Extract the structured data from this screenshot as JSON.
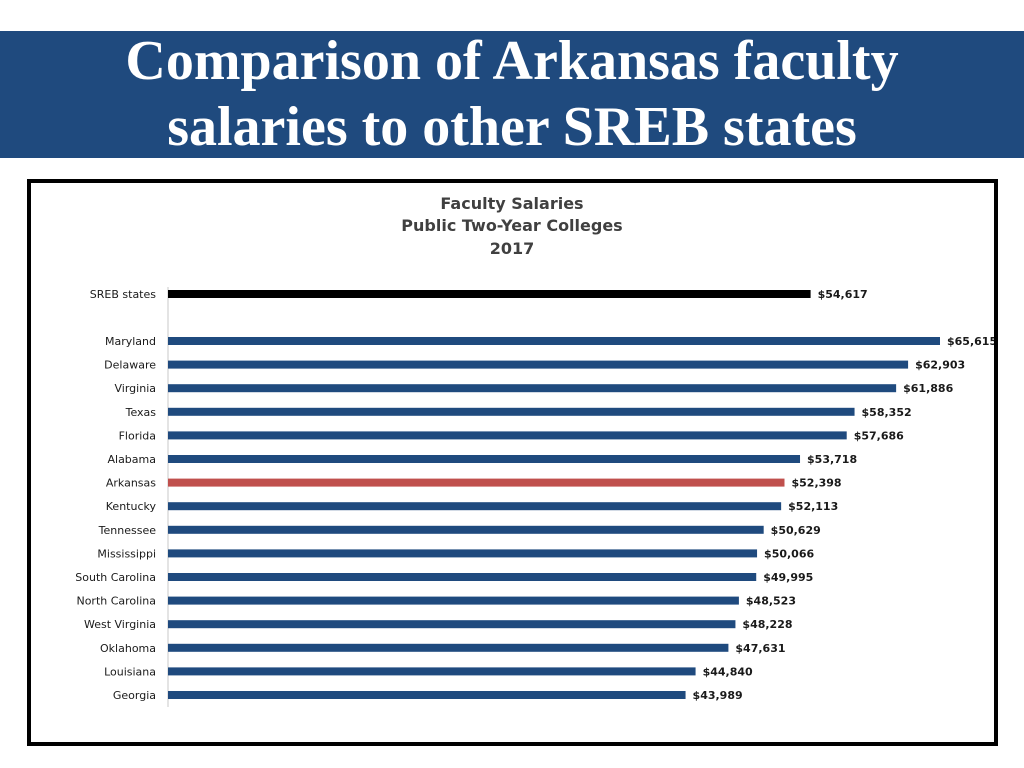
{
  "slide": {
    "title_line1": "Comparison of Arkansas faculty",
    "title_line2": "salaries to other SREB states"
  },
  "colors": {
    "banner": "#1f4a7e",
    "bar_default": "#1f4a7e",
    "bar_reference": "#000000",
    "bar_highlight": "#c0504d"
  },
  "chart_data": {
    "type": "bar",
    "orientation": "horizontal",
    "title": [
      "Faculty Salaries",
      "Public Two-Year Colleges",
      "2017"
    ],
    "xlabel": "",
    "ylabel": "",
    "grid": false,
    "legend": "none",
    "xlim": [
      0,
      65615
    ],
    "bars": [
      {
        "category": "SREB states",
        "value": 54617,
        "label": "$54,617",
        "style": "reference"
      },
      {
        "category": "Maryland",
        "value": 65615,
        "label": "$65,615",
        "style": "default"
      },
      {
        "category": "Delaware",
        "value": 62903,
        "label": "$62,903",
        "style": "default"
      },
      {
        "category": "Virginia",
        "value": 61886,
        "label": "$61,886",
        "style": "default"
      },
      {
        "category": "Texas",
        "value": 58352,
        "label": "$58,352",
        "style": "default"
      },
      {
        "category": "Florida",
        "value": 57686,
        "label": "$57,686",
        "style": "default"
      },
      {
        "category": "Alabama",
        "value": 53718,
        "label": "$53,718",
        "style": "default"
      },
      {
        "category": "Arkansas",
        "value": 52398,
        "label": "$52,398",
        "style": "highlight"
      },
      {
        "category": "Kentucky",
        "value": 52113,
        "label": "$52,113",
        "style": "default"
      },
      {
        "category": "Tennessee",
        "value": 50629,
        "label": "$50,629",
        "style": "default"
      },
      {
        "category": "Mississippi",
        "value": 50066,
        "label": "$50,066",
        "style": "default"
      },
      {
        "category": "South Carolina",
        "value": 49995,
        "label": "$49,995",
        "style": "default"
      },
      {
        "category": "North Carolina",
        "value": 48523,
        "label": "$48,523",
        "style": "default"
      },
      {
        "category": "West Virginia",
        "value": 48228,
        "label": "$48,228",
        "style": "default"
      },
      {
        "category": "Oklahoma",
        "value": 47631,
        "label": "$47,631",
        "style": "default"
      },
      {
        "category": "Louisiana",
        "value": 44840,
        "label": "$44,840",
        "style": "default"
      },
      {
        "category": "Georgia",
        "value": 43989,
        "label": "$43,989",
        "style": "default"
      }
    ]
  }
}
